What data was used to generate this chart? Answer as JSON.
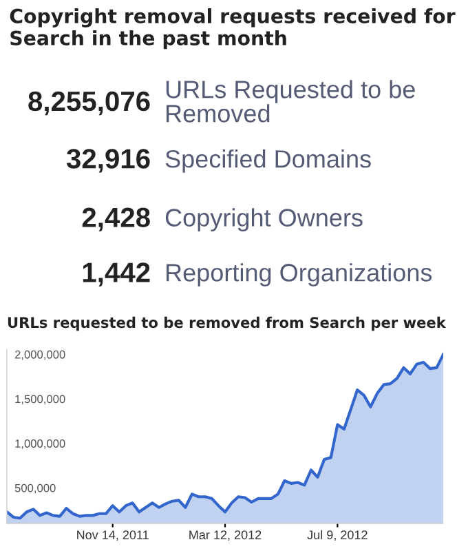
{
  "chart_data": [
    {
      "type": "other",
      "title": "Copyright removal requests received for Search in the past month",
      "annotations": [
        "8,255,076",
        "URLs Requested to be Removed",
        "32,916",
        "Specified Domains",
        "2,428",
        "Copyright Owners",
        "1,442",
        "Reporting Organizations"
      ]
    },
    {
      "type": "area",
      "title": "URLs requested to be removed from Search per week",
      "x": [
        "2011-07-25",
        "2011-08-01",
        "2011-08-08",
        "2011-08-15",
        "2011-08-22",
        "2011-08-29",
        "2011-09-05",
        "2011-09-12",
        "2011-09-19",
        "2011-09-26",
        "2011-10-03",
        "2011-10-10",
        "2011-10-17",
        "2011-10-24",
        "2011-10-31",
        "2011-11-07",
        "2011-11-14",
        "2011-11-21",
        "2011-11-28",
        "2011-12-05",
        "2011-12-12",
        "2011-12-19",
        "2011-12-26",
        "2012-01-02",
        "2012-01-09",
        "2012-01-16",
        "2012-01-23",
        "2012-01-30",
        "2012-02-06",
        "2012-02-13",
        "2012-02-20",
        "2012-02-27",
        "2012-03-05",
        "2012-03-12",
        "2012-03-19",
        "2012-03-26",
        "2012-04-02",
        "2012-04-09",
        "2012-04-16",
        "2012-04-23",
        "2012-04-30",
        "2012-05-07",
        "2012-05-14",
        "2012-05-21",
        "2012-05-28",
        "2012-06-04",
        "2012-06-11",
        "2012-06-18",
        "2012-06-25",
        "2012-07-02",
        "2012-07-09",
        "2012-07-16",
        "2012-07-23",
        "2012-07-30",
        "2012-08-06",
        "2012-08-13",
        "2012-08-20",
        "2012-08-27",
        "2012-09-03",
        "2012-09-10",
        "2012-09-17",
        "2012-09-24",
        "2012-10-01",
        "2012-10-08",
        "2012-10-15",
        "2012-10-22",
        "2012-10-29"
      ],
      "series": [
        {
          "color": "#3366cc",
          "values": [
            230000,
            170000,
            160000,
            230000,
            260000,
            190000,
            220000,
            190000,
            180000,
            270000,
            210000,
            180000,
            190000,
            190000,
            210000,
            210000,
            300000,
            230000,
            300000,
            330000,
            230000,
            280000,
            330000,
            280000,
            320000,
            350000,
            360000,
            280000,
            430000,
            400000,
            400000,
            380000,
            300000,
            230000,
            330000,
            400000,
            390000,
            340000,
            380000,
            380000,
            380000,
            430000,
            580000,
            550000,
            560000,
            530000,
            700000,
            620000,
            820000,
            840000,
            1210000,
            1160000,
            1380000,
            1600000,
            1540000,
            1410000,
            1560000,
            1660000,
            1670000,
            1730000,
            1850000,
            1780000,
            1890000,
            1910000,
            1840000,
            1850000,
            2000000
          ]
        }
      ],
      "xlim": [
        "2011-07-25",
        "2012-10-29"
      ],
      "xticks": [
        {
          "value": "2011-11-14",
          "label": "Nov 14, 2011"
        },
        {
          "value": "2012-03-12",
          "label": "Mar 12, 2012"
        },
        {
          "value": "2012-07-09",
          "label": "Jul 9, 2012"
        }
      ],
      "ylim": [
        100000,
        2050000
      ],
      "yticks": [
        {
          "value": 500000,
          "label": "500,000"
        },
        {
          "value": 1000000,
          "label": "1,000,000"
        },
        {
          "value": 1500000,
          "label": "1,500,000"
        },
        {
          "value": 2000000,
          "label": "2,000,000"
        }
      ],
      "grid": false
    }
  ]
}
